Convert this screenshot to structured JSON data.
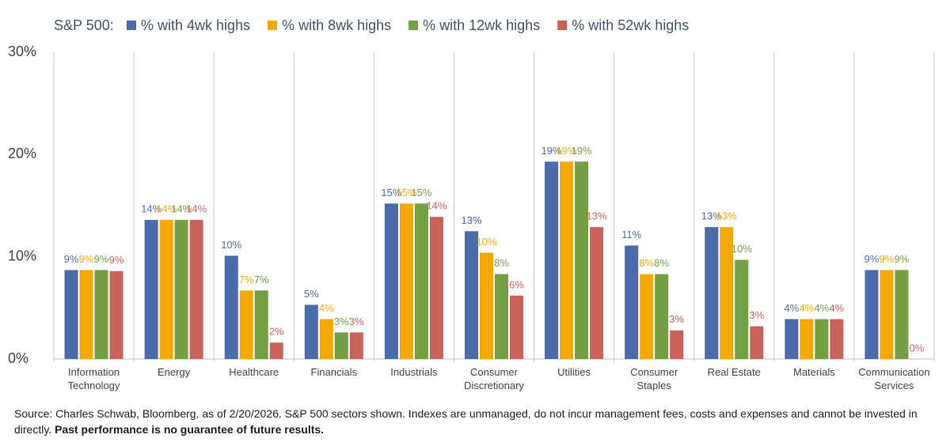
{
  "chart_data": {
    "type": "bar",
    "legend_title": "S&P 500:",
    "categories": [
      "Information Technology",
      "Energy",
      "Healthcare",
      "Financials",
      "Industrials",
      "Consumer Discretionary",
      "Utilities",
      "Consumer Staples",
      "Real Estate",
      "Materials",
      "Communication Services"
    ],
    "series": [
      {
        "name": "% with 4wk highs",
        "color": "#4a6cab",
        "values": [
          8.7,
          13.6,
          10.1,
          5.3,
          15.2,
          12.5,
          19.3,
          11.1,
          12.9,
          3.9,
          8.7
        ],
        "value_labels": [
          "9%",
          "14%",
          "10%",
          "5%",
          "15%",
          "13%",
          "19%",
          "11%",
          "13%",
          "4%",
          "9%"
        ]
      },
      {
        "name": "% with 8wk highs",
        "color": "#f5a800",
        "values": [
          8.7,
          13.6,
          6.7,
          3.9,
          15.2,
          10.4,
          19.3,
          8.3,
          12.9,
          3.9,
          8.7
        ],
        "value_labels": [
          "9%",
          "14%",
          "7%",
          "4%",
          "15%",
          "10%",
          "19%",
          "8%",
          "13%",
          "4%",
          "9%"
        ]
      },
      {
        "name": "% with 12wk highs",
        "color": "#72a043",
        "values": [
          8.7,
          13.6,
          6.7,
          2.6,
          15.2,
          8.3,
          19.3,
          8.3,
          9.7,
          3.9,
          8.7
        ],
        "value_labels": [
          "9%",
          "14%",
          "7%",
          "3%",
          "15%",
          "8%",
          "19%",
          "8%",
          "10%",
          "4%",
          "9%"
        ]
      },
      {
        "name": "% with 52wk highs",
        "color": "#c9625a",
        "values": [
          8.6,
          13.6,
          1.6,
          2.6,
          13.9,
          6.2,
          12.9,
          2.8,
          3.2,
          3.9,
          0
        ],
        "value_labels": [
          "9%",
          "14%",
          "2%",
          "3%",
          "14%",
          "6%",
          "13%",
          "3%",
          "3%",
          "4%",
          "0%"
        ]
      }
    ],
    "ylim": [
      0,
      30
    ],
    "yticks": [
      {
        "value": 0,
        "label": "0%"
      },
      {
        "value": 10,
        "label": "10%"
      },
      {
        "value": 20,
        "label": "20%"
      },
      {
        "value": 30,
        "label": "30%"
      }
    ],
    "source": "Source: Charles Schwab, Bloomberg, as of 2/20/2026. S&P 500 sectors shown. Indexes are unmanaged, do not incur management fees, costs and expenses and cannot be invested in directly.",
    "source_bold": "Past performance is no guarantee of future results."
  }
}
